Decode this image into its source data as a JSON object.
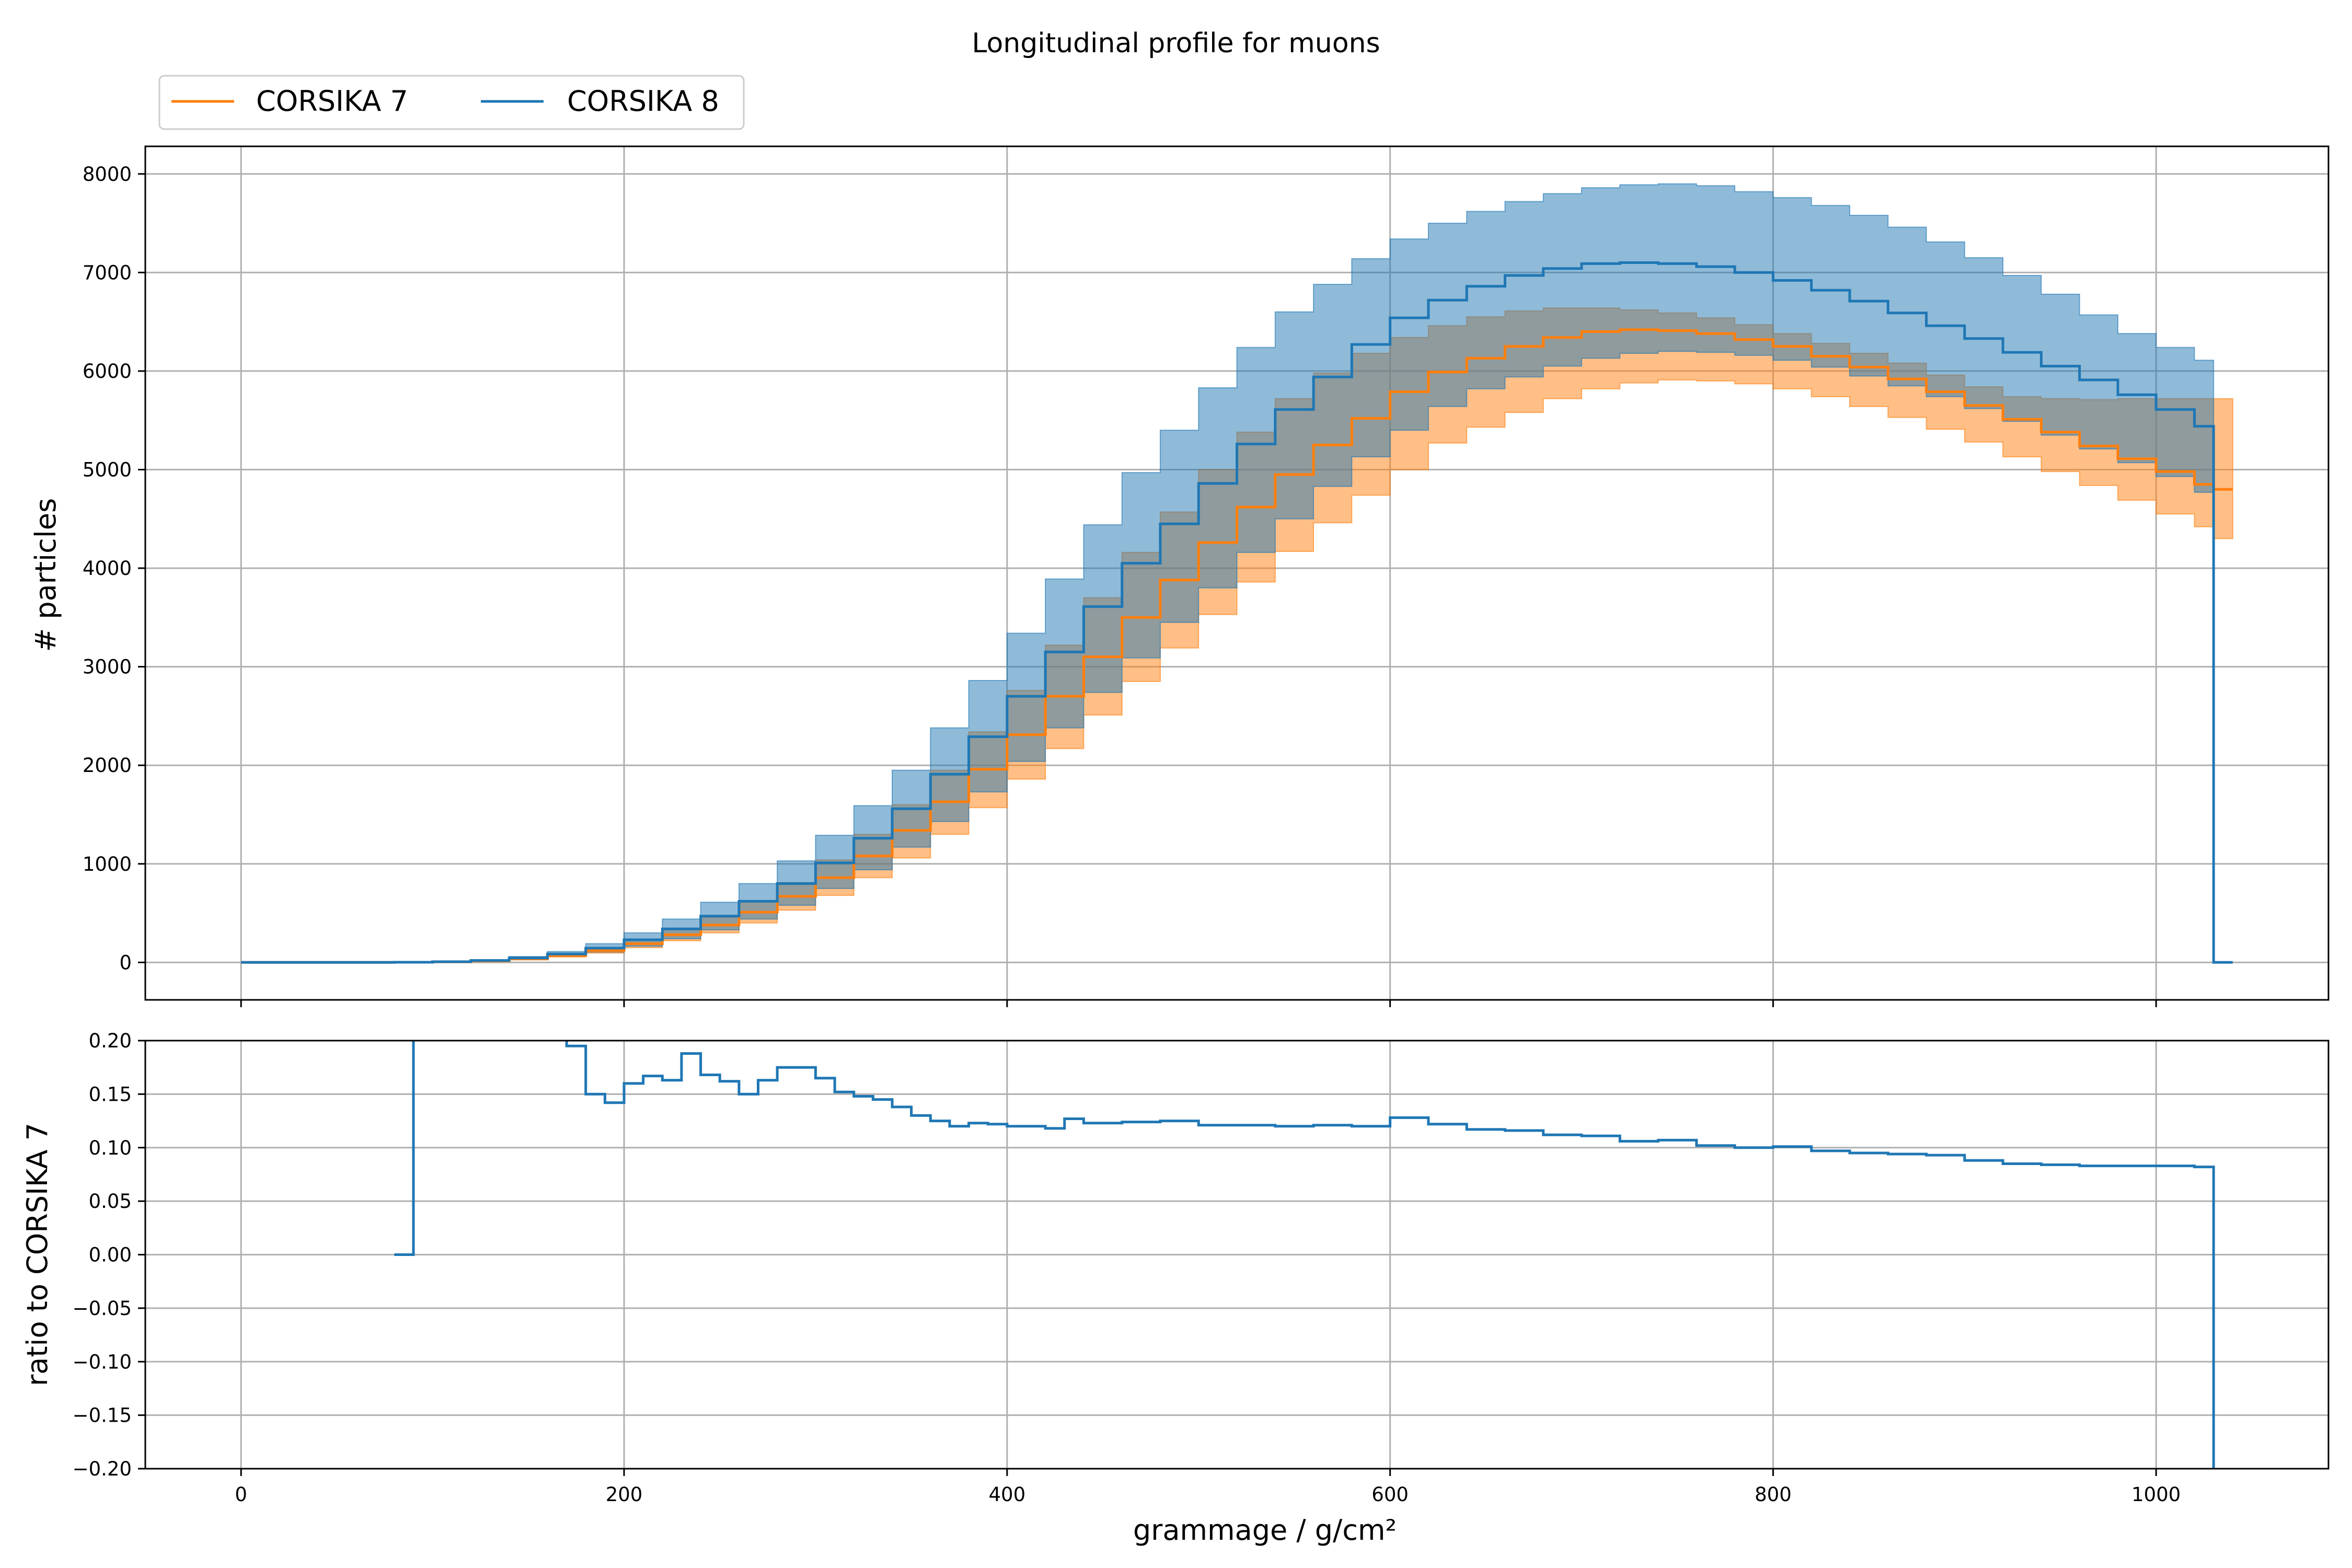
{
  "chart_data": {
    "type": "line",
    "title": "Longitudinal profile for muons",
    "legend": {
      "placement": "top-left",
      "entries": [
        {
          "label": "CORSIKA 7",
          "color": "#ff7f0e"
        },
        {
          "label": "CORSIKA 8",
          "color": "#1f77b4"
        }
      ]
    },
    "colors": {
      "corsika7": "#ff7f0e",
      "corsika8": "#1f77b4",
      "grid": "#b0b0b0",
      "axes": "#000000"
    },
    "panels": [
      {
        "name": "profile",
        "ylabel": "# particles",
        "xlim": [
          -50,
          1090
        ],
        "ylim": [
          -380,
          8280
        ],
        "grid": true,
        "xticks": [
          0,
          200,
          400,
          600,
          800,
          1000
        ],
        "xtick_labels_shown": false,
        "yticks": [
          0,
          1000,
          2000,
          3000,
          4000,
          5000,
          6000,
          7000,
          8000
        ],
        "ytick_labels": [
          "0",
          "1000",
          "2000",
          "3000",
          "4000",
          "5000",
          "6000",
          "7000",
          "8000"
        ],
        "series": [
          {
            "name": "CORSIKA 7",
            "drawstyle": "steps-post",
            "x": [
              0,
              50,
              80,
              100,
              120,
              140,
              160,
              180,
              200,
              220,
              240,
              260,
              280,
              300,
              320,
              340,
              360,
              380,
              400,
              420,
              440,
              460,
              480,
              500,
              520,
              540,
              560,
              580,
              600,
              620,
              640,
              660,
              680,
              700,
              720,
              740,
              760,
              780,
              800,
              820,
              840,
              860,
              880,
              900,
              920,
              940,
              960,
              980,
              1000,
              1020,
              1030,
              1040
            ],
            "y": [
              0,
              0,
              2,
              6,
              15,
              35,
              70,
              120,
              190,
              280,
              380,
              510,
              670,
              860,
              1080,
              1340,
              1630,
              1960,
              2310,
              2700,
              3100,
              3500,
              3880,
              4260,
              4620,
              4950,
              5250,
              5520,
              5790,
              5990,
              6130,
              6250,
              6340,
              6400,
              6420,
              6410,
              6380,
              6320,
              6250,
              6150,
              6040,
              5920,
              5790,
              5650,
              5510,
              5380,
              5240,
              5110,
              4980,
              4850,
              4800,
              4800
            ],
            "band_low": [
              0,
              0,
              2,
              5,
              12,
              28,
              55,
              95,
              150,
              220,
              300,
              400,
              530,
              680,
              860,
              1060,
              1300,
              1570,
              1860,
              2170,
              2510,
              2850,
              3190,
              3530,
              3860,
              4170,
              4460,
              4740,
              5000,
              5270,
              5430,
              5580,
              5720,
              5820,
              5880,
              5910,
              5900,
              5870,
              5820,
              5740,
              5640,
              5530,
              5410,
              5280,
              5130,
              4980,
              4840,
              4690,
              4550,
              4420,
              4300,
              4300
            ],
            "band_high": [
              0,
              0,
              3,
              7,
              18,
              42,
              85,
              145,
              230,
              340,
              460,
              620,
              810,
              1040,
              1300,
              1600,
              1950,
              2340,
              2760,
              3220,
              3700,
              4160,
              4570,
              5000,
              5380,
              5720,
              5980,
              6180,
              6340,
              6460,
              6550,
              6610,
              6640,
              6640,
              6620,
              6590,
              6540,
              6470,
              6380,
              6280,
              6180,
              6080,
              5960,
              5840,
              5740,
              5720,
              5710,
              5720,
              5720,
              5720,
              5720,
              5720
            ]
          },
          {
            "name": "CORSIKA 8",
            "drawstyle": "steps-post",
            "x": [
              0,
              50,
              80,
              100,
              120,
              140,
              160,
              180,
              200,
              220,
              240,
              260,
              280,
              300,
              320,
              340,
              360,
              380,
              400,
              420,
              440,
              460,
              480,
              500,
              520,
              540,
              560,
              580,
              600,
              620,
              640,
              660,
              680,
              700,
              720,
              740,
              760,
              780,
              800,
              820,
              840,
              860,
              880,
              900,
              920,
              940,
              960,
              980,
              1000,
              1020,
              1030,
              1040
            ],
            "y": [
              0,
              0,
              2,
              7,
              20,
              45,
              85,
              145,
              230,
              340,
              470,
              620,
              800,
              1010,
              1260,
              1560,
              1910,
              2290,
              2700,
              3150,
              3610,
              4050,
              4450,
              4860,
              5260,
              5610,
              5940,
              6270,
              6540,
              6720,
              6860,
              6970,
              7040,
              7090,
              7100,
              7090,
              7060,
              7000,
              6920,
              6820,
              6710,
              6590,
              6460,
              6330,
              6190,
              6050,
              5910,
              5760,
              5610,
              5440,
              0,
              0
            ],
            "band_low": [
              0,
              0,
              2,
              5,
              14,
              32,
              62,
              105,
              165,
              240,
              330,
              440,
              580,
              750,
              940,
              1170,
              1430,
              1730,
              2040,
              2380,
              2740,
              3090,
              3450,
              3800,
              4160,
              4500,
              4830,
              5130,
              5400,
              5640,
              5820,
              5940,
              6050,
              6130,
              6180,
              6200,
              6190,
              6160,
              6110,
              6040,
              5950,
              5850,
              5740,
              5620,
              5490,
              5350,
              5210,
              5070,
              4930,
              4770,
              0,
              0
            ],
            "band_high": [
              0,
              0,
              3,
              9,
              27,
              60,
              110,
              190,
              300,
              440,
              610,
              800,
              1030,
              1290,
              1590,
              1950,
              2380,
              2860,
              3340,
              3890,
              4440,
              4970,
              5400,
              5830,
              6240,
              6600,
              6880,
              7140,
              7340,
              7500,
              7620,
              7720,
              7800,
              7860,
              7890,
              7900,
              7880,
              7820,
              7760,
              7680,
              7580,
              7460,
              7310,
              7150,
              6970,
              6780,
              6570,
              6380,
              6240,
              6110,
              0,
              0
            ]
          }
        ]
      },
      {
        "name": "ratio",
        "ylabel": "ratio to CORSIKA 7",
        "xlabel": "grammage / g/cm²",
        "xlim": [
          -50,
          1090
        ],
        "ylim": [
          -0.2,
          0.2
        ],
        "grid": true,
        "xticks": [
          0,
          200,
          400,
          600,
          800,
          1000
        ],
        "xtick_labels": [
          "0",
          "200",
          "400",
          "600",
          "800",
          "1000"
        ],
        "yticks": [
          -0.2,
          -0.15,
          -0.1,
          -0.05,
          0,
          0.05,
          0.1,
          0.15,
          0.2
        ],
        "ytick_labels": [
          "−0.20",
          "−0.15",
          "−0.10",
          "−0.05",
          "0.00",
          "0.05",
          "0.10",
          "0.15",
          "0.20"
        ],
        "series": [
          {
            "name": "CORSIKA 8 / CORSIKA 7",
            "drawstyle": "steps-post",
            "x": [
              80,
              90,
              170,
              180,
              190,
              200,
              210,
              220,
              230,
              240,
              250,
              260,
              270,
              280,
              290,
              300,
              310,
              320,
              330,
              340,
              350,
              360,
              370,
              380,
              390,
              400,
              420,
              430,
              440,
              460,
              480,
              500,
              520,
              540,
              560,
              580,
              600,
              620,
              640,
              660,
              680,
              700,
              720,
              740,
              760,
              780,
              800,
              820,
              840,
              860,
              880,
              900,
              920,
              940,
              960,
              980,
              1000,
              1020,
              1030
            ],
            "y": [
              0.0,
              0.5,
              0.195,
              0.15,
              0.142,
              0.16,
              0.167,
              0.163,
              0.188,
              0.168,
              0.162,
              0.15,
              0.163,
              0.175,
              0.175,
              0.165,
              0.152,
              0.148,
              0.145,
              0.138,
              0.13,
              0.125,
              0.12,
              0.123,
              0.122,
              0.12,
              0.118,
              0.127,
              0.123,
              0.124,
              0.125,
              0.121,
              0.121,
              0.12,
              0.121,
              0.12,
              0.128,
              0.122,
              0.117,
              0.116,
              0.112,
              0.111,
              0.106,
              0.107,
              0.102,
              0.1,
              0.101,
              0.097,
              0.095,
              0.094,
              0.093,
              0.088,
              0.085,
              0.084,
              0.083,
              0.083,
              0.083,
              0.082,
              -0.5
            ]
          }
        ]
      }
    ]
  }
}
